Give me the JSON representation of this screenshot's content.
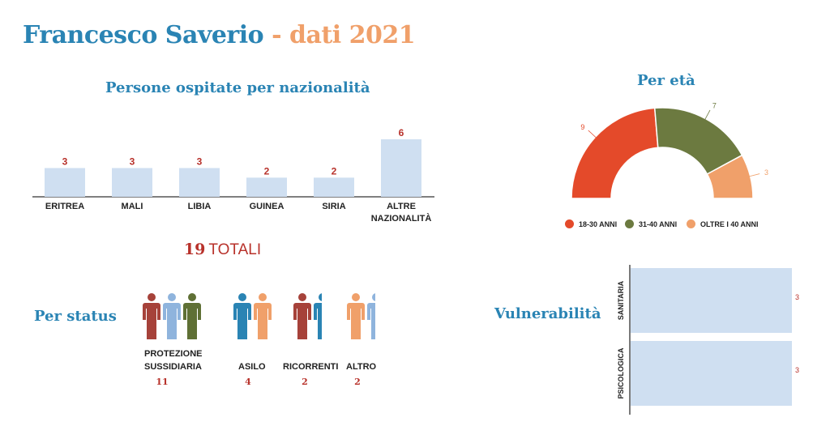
{
  "header": {
    "name": "Francesco Saverio",
    "sep": "-",
    "year_text": "dati 2021"
  },
  "colors": {
    "blue": "#2a84b4",
    "orange": "#f0a06a",
    "red": "#e44a2a",
    "green": "#6c7a40",
    "bar": "#cfdff1",
    "number_red": "#b8322b"
  },
  "nationality": {
    "title": "Persone ospitate per nazionalità",
    "chart_data": {
      "type": "bar",
      "categories": [
        "ERITREA",
        "MALI",
        "LIBIA",
        "GUINEA",
        "SIRIA",
        "ALTRE NAZIONALITÀ"
      ],
      "category_lines": [
        [
          "ERITREA"
        ],
        [
          "MALI"
        ],
        [
          "LIBIA"
        ],
        [
          "GUINEA"
        ],
        [
          "SIRIA"
        ],
        [
          "ALTRE",
          "NAZIONALITÀ"
        ]
      ],
      "values": [
        3,
        3,
        3,
        2,
        2,
        6
      ],
      "ylim": [
        0,
        6
      ]
    }
  },
  "totals": {
    "number": "19",
    "label": "TOTALI"
  },
  "age": {
    "title": "Per età",
    "chart_data": {
      "type": "pie",
      "categories": [
        "18-30 ANNI",
        "31-40 ANNI",
        "OLTRE I 40 ANNI"
      ],
      "values": [
        9,
        7,
        3
      ],
      "colors": [
        "#e44a2a",
        "#6c7a40",
        "#f0a06a"
      ],
      "legend": "bottom"
    }
  },
  "status": {
    "title": "Per status",
    "groups": [
      {
        "label": "PROTEZIONE SUSSIDIARIA",
        "label_lines": [
          "PROTEZIONE",
          "SUSSIDIARIA"
        ],
        "count": "11",
        "icon_colors": [
          "#a6423a",
          "#8fb4dd",
          "#5f7035"
        ]
      },
      {
        "label": "ASILO",
        "label_lines": [
          "ASILO"
        ],
        "count": "4",
        "icon_colors": [
          "#2a84b4",
          "#f0a06a"
        ]
      },
      {
        "label": "RICORRENTI",
        "label_lines": [
          "RICORRENTI"
        ],
        "count": "2",
        "icon_colors": [
          "#a6423a",
          "#2a84b4"
        ]
      },
      {
        "label": "ALTRO",
        "label_lines": [
          "ALTRO"
        ],
        "count": "2",
        "icon_colors": [
          "#f0a06a",
          "#8fb4dd"
        ]
      }
    ]
  },
  "vulnerability": {
    "title": "Vulnerabilità",
    "chart_data": {
      "type": "bar",
      "orientation": "horizontal",
      "categories": [
        "SANITARIA",
        "PSICOLOGICA"
      ],
      "values": [
        3,
        3
      ],
      "xlim": [
        0,
        3
      ]
    }
  }
}
